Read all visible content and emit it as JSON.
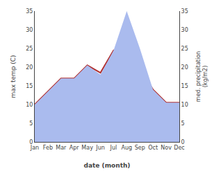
{
  "chart_data": {
    "type": "line",
    "categories": [
      "Jan",
      "Feb",
      "Mar",
      "Apr",
      "May",
      "Jun",
      "Jul",
      "Aug",
      "Sep",
      "Oct",
      "Nov",
      "Dec"
    ],
    "series": [
      {
        "type": "area",
        "axis": "y2",
        "color": "#aabbee",
        "values": [
          10.0,
          13.5,
          17.0,
          17.0,
          20.5,
          18.0,
          24.5,
          35.0,
          25.0,
          14.0,
          10.5,
          10.5
        ]
      },
      {
        "type": "line",
        "color": "#b03030",
        "values": [
          10.0,
          13.5,
          17.0,
          17.0,
          20.5,
          18.5,
          24.5,
          25.0,
          20.0,
          14.0,
          10.5,
          10.5
        ]
      }
    ],
    "xlabel": "date (month)",
    "ylabel": "max temp (C)",
    "y2label": "med. precipitation\n(kg/m2)",
    "ylim": [
      0,
      35
    ],
    "yticks": [
      0,
      5,
      10,
      15,
      20,
      25,
      30,
      35
    ],
    "y2lim": [
      0,
      35
    ],
    "y2ticks": [
      0,
      5,
      10,
      15,
      20,
      25,
      30,
      35
    ],
    "grid": false
  }
}
